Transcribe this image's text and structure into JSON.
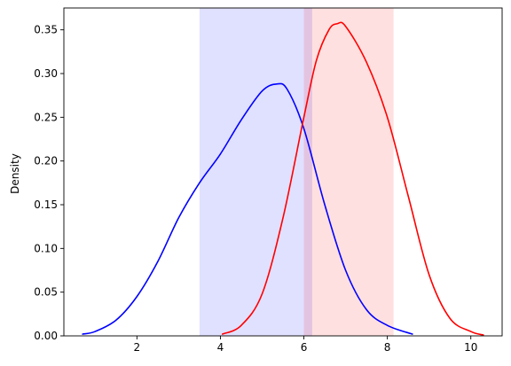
{
  "chart_data": {
    "type": "line",
    "title": "",
    "xlabel": "",
    "ylabel": "Density",
    "xlim": [
      0.25,
      10.75
    ],
    "ylim": [
      0,
      0.375
    ],
    "xticks": [
      2,
      4,
      6,
      8,
      10
    ],
    "xtick_labels": [
      "2",
      "4",
      "6",
      "8",
      "10"
    ],
    "yticks": [
      0.0,
      0.05,
      0.1,
      0.15,
      0.2,
      0.25,
      0.3,
      0.35
    ],
    "ytick_labels": [
      "0.00",
      "0.05",
      "0.10",
      "0.15",
      "0.20",
      "0.25",
      "0.30",
      "0.35"
    ],
    "grid": false,
    "bands": [
      {
        "x0": 3.5,
        "x1": 6.2,
        "color": "#0000ff",
        "alpha": 0.12
      },
      {
        "x0": 6.0,
        "x1": 8.15,
        "color": "#ff0000",
        "alpha": 0.12
      }
    ],
    "series": [
      {
        "color": "#0000ff",
        "x": [
          0.7,
          1.0,
          1.5,
          2.0,
          2.5,
          3.0,
          3.5,
          4.0,
          4.5,
          5.0,
          5.35,
          5.6,
          6.0,
          6.5,
          7.0,
          7.5,
          8.0,
          8.6
        ],
        "y": [
          0.002,
          0.005,
          0.018,
          0.045,
          0.085,
          0.135,
          0.175,
          0.208,
          0.247,
          0.28,
          0.288,
          0.282,
          0.237,
          0.15,
          0.075,
          0.03,
          0.012,
          0.002
        ]
      },
      {
        "color": "#ff0000",
        "x": [
          4.05,
          4.5,
          5.0,
          5.5,
          6.0,
          6.3,
          6.6,
          6.8,
          7.0,
          7.5,
          8.0,
          8.5,
          9.0,
          9.5,
          10.0,
          10.3
        ],
        "y": [
          0.002,
          0.012,
          0.048,
          0.135,
          0.25,
          0.315,
          0.35,
          0.357,
          0.354,
          0.313,
          0.25,
          0.16,
          0.07,
          0.02,
          0.005,
          0.001
        ]
      }
    ]
  }
}
